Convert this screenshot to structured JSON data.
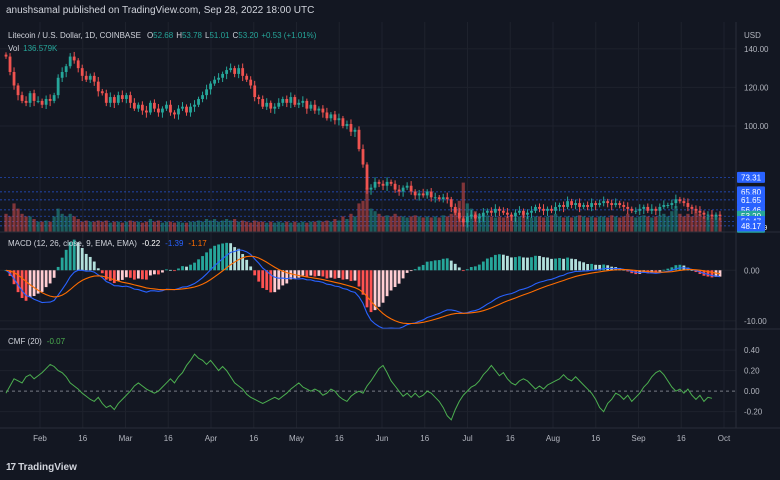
{
  "header": {
    "publish": "anushsamal published on TradingView.com, Sep 28, 2022 18:00 UTC"
  },
  "footer": {
    "brand": "TradingView"
  },
  "colors": {
    "background": "#131722",
    "up": "#26a69a",
    "down": "#ef5350",
    "macd": "#2962ff",
    "signal": "#ff6d00",
    "cmf": "#4caf50",
    "grid": "#1e222d",
    "level_line": "#2962ff",
    "tag_blue": "#2962ff",
    "tag_green": "#26a69a",
    "tag_dark": "#1e222d"
  },
  "price_pane": {
    "symbol": "Litecoin / U.S. Dollar, 1D, COINBASE",
    "open": "52.68",
    "high": "53.78",
    "low": "51.01",
    "close": "53.20",
    "change": "+0.53 (+1.01%)",
    "vol_label": "Vol",
    "vol_value": "136.579K",
    "axis_currency": "USD"
  },
  "macd_pane": {
    "title": "MACD (12, 26, close, 9, EMA, EMA)",
    "hist_value": "-0.22",
    "macd_value": "-1.39",
    "signal_value": "-1.17"
  },
  "cmf_pane": {
    "title": "CMF (20)",
    "value": "-0.07"
  },
  "chart_data": [
    {
      "type": "candlestick",
      "title": "Litecoin / U.S. Dollar, 1D, COINBASE",
      "ylabel": "USD",
      "ylim": [
        45,
        142
      ],
      "price_ticks": [
        140,
        120,
        100
      ],
      "price_tick_labels": [
        "140.00",
        "120.00",
        "100.00"
      ],
      "levels": [
        73.31,
        65.8,
        61.65,
        56.46,
        53.2,
        50.47,
        48.17
      ],
      "level_labels": [
        "73.31",
        "65.80",
        "61.65",
        "56.46",
        "53.20",
        "50.47",
        "48.17"
      ],
      "current_price_countdown": "05:59:49",
      "x_ticks": [
        "Feb",
        "16",
        "Mar",
        "16",
        "Apr",
        "16",
        "May",
        "16",
        "Jun",
        "16",
        "Jul",
        "16",
        "Aug",
        "16",
        "Sep",
        "16",
        "Oct"
      ],
      "closes": [
        136,
        128,
        121,
        116,
        113,
        112,
        117,
        113,
        113,
        111,
        114,
        113,
        116,
        125,
        128,
        131,
        136,
        134,
        130,
        126,
        124,
        126,
        123,
        118,
        117,
        112,
        115,
        112,
        116,
        114,
        116,
        112,
        109,
        111,
        108,
        107,
        112,
        109,
        107,
        109,
        111,
        107,
        106,
        109,
        110,
        107,
        110,
        111,
        114,
        116,
        119,
        122,
        124,
        125,
        127,
        129,
        130,
        127,
        130,
        126,
        124,
        121,
        115,
        114,
        110,
        112,
        109,
        110,
        112,
        114,
        112,
        115,
        111,
        112,
        113,
        109,
        111,
        108,
        109,
        107,
        104,
        106,
        103,
        104,
        100,
        101,
        97,
        98,
        88,
        80,
        67,
        68,
        71,
        70,
        69,
        71,
        70,
        67,
        66,
        68,
        69,
        66,
        64,
        65,
        64,
        66,
        63,
        63,
        62,
        63,
        62,
        58,
        55,
        52,
        50,
        53,
        54,
        52,
        53,
        55,
        56,
        55,
        57,
        56,
        55,
        54,
        53,
        55,
        56,
        54,
        55,
        56,
        58,
        57,
        56,
        57,
        56,
        58,
        59,
        58,
        61,
        59,
        60,
        58,
        59,
        58,
        60,
        59,
        60,
        61,
        60,
        59,
        60,
        59,
        58,
        57,
        56,
        56,
        57,
        58,
        56,
        57,
        56,
        58,
        59,
        59,
        60,
        62,
        61,
        60,
        58,
        57,
        56,
        55,
        54,
        54,
        53,
        54,
        53.2
      ],
      "volume_relative": [
        0.35,
        0.3,
        0.55,
        0.45,
        0.35,
        0.3,
        0.3,
        0.25,
        0.2,
        0.2,
        0.22,
        0.2,
        0.3,
        0.45,
        0.35,
        0.3,
        0.35,
        0.3,
        0.25,
        0.2,
        0.22,
        0.2,
        0.2,
        0.22,
        0.2,
        0.22,
        0.18,
        0.2,
        0.2,
        0.18,
        0.2,
        0.22,
        0.2,
        0.2,
        0.18,
        0.2,
        0.25,
        0.2,
        0.22,
        0.18,
        0.2,
        0.2,
        0.18,
        0.2,
        0.18,
        0.18,
        0.2,
        0.2,
        0.22,
        0.2,
        0.25,
        0.22,
        0.25,
        0.2,
        0.22,
        0.25,
        0.22,
        0.25,
        0.2,
        0.22,
        0.2,
        0.18,
        0.22,
        0.2,
        0.2,
        0.18,
        0.2,
        0.18,
        0.2,
        0.18,
        0.2,
        0.18,
        0.2,
        0.18,
        0.2,
        0.18,
        0.2,
        0.2,
        0.22,
        0.2,
        0.22,
        0.2,
        0.25,
        0.22,
        0.3,
        0.25,
        0.35,
        0.3,
        0.55,
        0.6,
        0.85,
        0.45,
        0.4,
        0.35,
        0.3,
        0.32,
        0.3,
        0.35,
        0.3,
        0.3,
        0.28,
        0.3,
        0.32,
        0.3,
        0.28,
        0.3,
        0.28,
        0.3,
        0.28,
        0.32,
        0.3,
        0.35,
        0.45,
        0.6,
        0.95,
        0.55,
        0.45,
        0.4,
        0.35,
        0.3,
        0.32,
        0.3,
        0.28,
        0.3,
        0.28,
        0.3,
        0.32,
        0.28,
        0.3,
        0.35,
        0.3,
        0.28,
        0.3,
        0.3,
        0.28,
        0.3,
        0.32,
        0.35,
        0.3,
        0.28,
        0.3,
        0.28,
        0.3,
        0.32,
        0.3,
        0.28,
        0.3,
        0.28,
        0.3,
        0.3,
        0.28,
        0.32,
        0.3,
        0.28,
        0.3,
        0.35,
        0.3,
        0.28,
        0.3,
        0.32,
        0.3,
        0.28,
        0.3,
        0.32,
        0.35,
        0.3,
        0.4,
        0.5,
        0.35,
        0.3,
        0.35,
        0.3,
        0.4,
        0.35,
        0.3,
        0.3,
        0.28,
        0.3,
        0.28
      ]
    },
    {
      "type": "line",
      "title": "MACD (12, 26, close, 9, EMA, EMA)",
      "ylim": [
        -11,
        4
      ],
      "ticks": [
        0,
        -10
      ],
      "tick_labels": [
        "0.00",
        "-10.00"
      ]
    },
    {
      "type": "line",
      "title": "CMF (20)",
      "ylim": [
        -0.32,
        0.42
      ],
      "ticks": [
        0.4,
        0.2,
        0,
        -0.2
      ],
      "tick_labels": [
        "0.40",
        "0.20",
        "0.00",
        "-0.20"
      ],
      "values": [
        -0.02,
        0.05,
        0.12,
        0.1,
        0.08,
        0.14,
        0.16,
        0.12,
        0.15,
        0.18,
        0.22,
        0.26,
        0.24,
        0.2,
        0.18,
        0.14,
        0.08,
        0.05,
        0.02,
        -0.02,
        -0.05,
        -0.08,
        -0.1,
        -0.06,
        -0.12,
        -0.16,
        -0.14,
        -0.18,
        -0.12,
        -0.08,
        -0.04,
        0.0,
        0.05,
        0.08,
        0.05,
        0.02,
        0.0,
        -0.02,
        0.0,
        0.04,
        0.08,
        0.12,
        0.08,
        0.14,
        0.18,
        0.25,
        0.3,
        0.36,
        0.32,
        0.3,
        0.26,
        0.3,
        0.25,
        0.2,
        0.24,
        0.2,
        0.14,
        0.08,
        0.05,
        0.02,
        -0.03,
        -0.06,
        -0.08,
        -0.1,
        -0.12,
        -0.1,
        -0.08,
        -0.06,
        -0.08,
        -0.05,
        -0.02,
        0.02,
        0.05,
        0.08,
        0.04,
        0.02,
        0.0,
        0.02,
        0.0,
        -0.04,
        -0.02,
        0.02,
        0.0,
        -0.05,
        -0.08,
        -0.1,
        -0.05,
        -0.02,
        0.0,
        -0.02,
        0.05,
        0.1,
        0.16,
        0.22,
        0.25,
        0.18,
        0.1,
        0.05,
        0.0,
        -0.05,
        -0.02,
        -0.06,
        -0.02,
        -0.06,
        -0.04,
        0.0,
        -0.02,
        -0.06,
        -0.1,
        -0.16,
        -0.24,
        -0.28,
        -0.18,
        -0.1,
        -0.04,
        0.0,
        0.04,
        0.06,
        0.1,
        0.16,
        0.2,
        0.25,
        0.2,
        0.15,
        0.18,
        0.12,
        0.08,
        0.06,
        0.1,
        0.12,
        0.1,
        0.06,
        0.02,
        0.05,
        0.02,
        0.06,
        0.08,
        0.1,
        0.12,
        0.16,
        0.12,
        0.1,
        0.14,
        0.1,
        0.06,
        0.02,
        -0.02,
        -0.08,
        -0.16,
        -0.2,
        -0.12,
        -0.08,
        -0.02,
        -0.04,
        -0.08,
        -0.04,
        -0.1,
        -0.06,
        -0.02,
        0.04,
        0.08,
        0.14,
        0.18,
        0.2,
        0.16,
        0.1,
        0.04,
        0.0,
        0.02,
        -0.02,
        0.02,
        -0.04,
        -0.08,
        -0.04,
        -0.1,
        -0.06,
        -0.07
      ]
    }
  ]
}
